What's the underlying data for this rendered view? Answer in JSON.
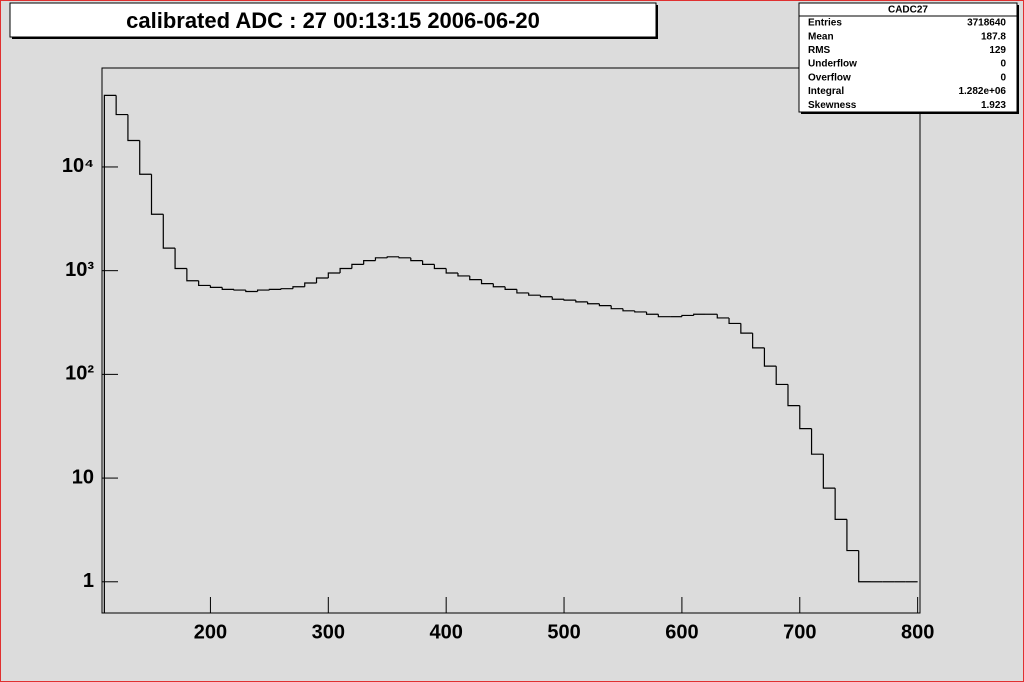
{
  "chart_data": {
    "type": "histogram",
    "title": "calibrated ADC :  27  00:13:15  2006-06-20",
    "bins": [
      110,
      120,
      130,
      140,
      150,
      160,
      170,
      180,
      190,
      200,
      210,
      220,
      230,
      240,
      250,
      260,
      270,
      280,
      290,
      300,
      310,
      320,
      330,
      340,
      350,
      360,
      370,
      380,
      390,
      400,
      410,
      420,
      430,
      440,
      450,
      460,
      470,
      480,
      490,
      500,
      510,
      520,
      530,
      540,
      550,
      560,
      570,
      580,
      590,
      600,
      610,
      620,
      630,
      640,
      650,
      660,
      670,
      680,
      690,
      700,
      710,
      720,
      730,
      740,
      750,
      760,
      770,
      780,
      790,
      800
    ],
    "values": [
      49000,
      32000,
      18000,
      8500,
      3500,
      1650,
      1050,
      800,
      720,
      690,
      660,
      650,
      630,
      650,
      660,
      670,
      700,
      760,
      850,
      950,
      1050,
      1150,
      1250,
      1330,
      1360,
      1330,
      1250,
      1150,
      1050,
      950,
      890,
      820,
      750,
      700,
      660,
      610,
      580,
      560,
      530,
      520,
      500,
      480,
      460,
      430,
      410,
      400,
      380,
      360,
      360,
      370,
      380,
      380,
      350,
      310,
      250,
      180,
      120,
      80,
      50,
      30,
      17,
      8,
      4,
      2,
      1,
      1,
      1,
      1,
      1
    ],
    "color": "#000000",
    "log_y": true,
    "xlim": [
      108,
      802
    ],
    "xticks": [
      200,
      300,
      400,
      500,
      600,
      700,
      800
    ],
    "ylim": [
      0.5,
      90000
    ],
    "yticks": [
      1,
      10,
      {
        "value": 100,
        "label": "10²"
      },
      {
        "value": 1000,
        "label": "10³"
      },
      {
        "value": 10000,
        "label": "10⁴"
      }
    ]
  },
  "stats_box": {
    "title": "CADC27",
    "rows": [
      {
        "label": "Entries",
        "value": "3718640"
      },
      {
        "label": "Mean",
        "value": "187.8"
      },
      {
        "label": "RMS",
        "value": "129"
      },
      {
        "label": "Underflow",
        "value": "0"
      },
      {
        "label": "Overflow",
        "value": "0"
      },
      {
        "label": "Integral",
        "value": "1.282e+06"
      },
      {
        "label": "Skewness",
        "value": "1.923"
      }
    ]
  }
}
